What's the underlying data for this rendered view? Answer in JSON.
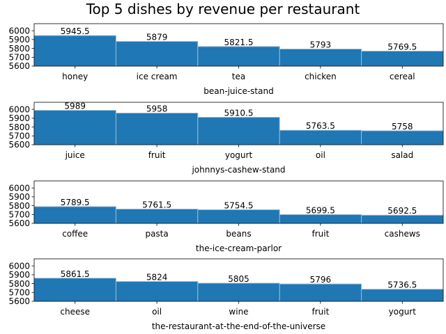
{
  "title": "Top 5 dishes by revenue per restaurant",
  "colors": {
    "bar": "#1f77b4",
    "bar_edge": "#9dbad6",
    "background": "#ffffff"
  },
  "chart_data": [
    {
      "type": "bar",
      "xlabel": "bean-juice-stand",
      "ylabel": "",
      "categories": [
        "honey",
        "ice cream",
        "tea",
        "chicken",
        "cereal"
      ],
      "values": [
        5945.5,
        5879,
        5821.5,
        5793,
        5769.5
      ],
      "data_labels": [
        "5945.5",
        "5879",
        "5821.5",
        "5793",
        "5769.5"
      ],
      "ylim": [
        5600,
        6080
      ],
      "yticks": [
        5600,
        5700,
        5800,
        5900,
        6000
      ],
      "grid": false
    },
    {
      "type": "bar",
      "xlabel": "johnnys-cashew-stand",
      "ylabel": "",
      "categories": [
        "juice",
        "fruit",
        "yogurt",
        "oil",
        "salad"
      ],
      "values": [
        5989,
        5958,
        5910.5,
        5763.5,
        5758
      ],
      "data_labels": [
        "5989",
        "5958",
        "5910.5",
        "5763.5",
        "5758"
      ],
      "ylim": [
        5600,
        6080
      ],
      "yticks": [
        5600,
        5700,
        5800,
        5900,
        6000
      ],
      "grid": false
    },
    {
      "type": "bar",
      "xlabel": "the-ice-cream-parlor",
      "ylabel": "",
      "categories": [
        "coffee",
        "pasta",
        "beans",
        "fruit",
        "cashews"
      ],
      "values": [
        5789.5,
        5761.5,
        5754.5,
        5699.5,
        5692.5
      ],
      "data_labels": [
        "5789.5",
        "5761.5",
        "5754.5",
        "5699.5",
        "5692.5"
      ],
      "ylim": [
        5600,
        6080
      ],
      "yticks": [
        5600,
        5700,
        5800,
        5900,
        6000
      ],
      "grid": false
    },
    {
      "type": "bar",
      "xlabel": "the-restaurant-at-the-end-of-the-universe",
      "ylabel": "",
      "categories": [
        "cheese",
        "oil",
        "wine",
        "fruit",
        "yogurt"
      ],
      "values": [
        5861.5,
        5824,
        5805,
        5796,
        5736.5
      ],
      "data_labels": [
        "5861.5",
        "5824",
        "5805",
        "5796",
        "5736.5"
      ],
      "ylim": [
        5600,
        6080
      ],
      "yticks": [
        5600,
        5700,
        5800,
        5900,
        6000
      ],
      "grid": false
    }
  ]
}
